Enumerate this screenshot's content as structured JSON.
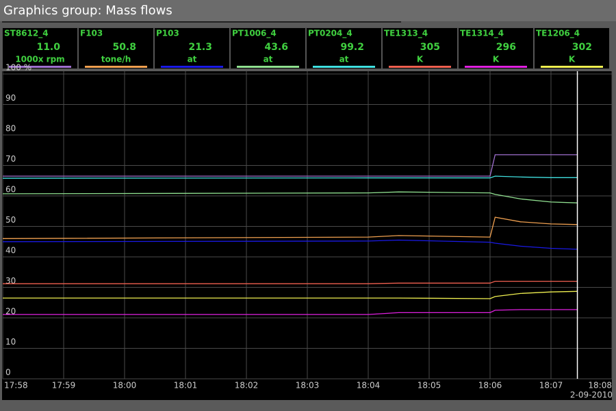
{
  "window_title": "Graphics group: Mass flows",
  "chart_data": {
    "type": "line",
    "x": [
      "17:58:00",
      "18:04:00",
      "18:04:30",
      "18:06:00",
      "18:06:05",
      "18:06:30",
      "18:07:00",
      "18:07:26"
    ],
    "xlim": [
      "17:58",
      "18:08"
    ],
    "xticks": [
      "17:58",
      "17:59",
      "18:00",
      "18:01",
      "18:02",
      "18:03",
      "18:04",
      "18:05",
      "18:06",
      "18:07",
      "18:08"
    ],
    "date": "2-09-2010",
    "ylim": [
      0,
      100
    ],
    "yticks": [
      0,
      10,
      20,
      30,
      40,
      50,
      60,
      70,
      80,
      90,
      {
        "value": 100,
        "label": "100 %"
      }
    ],
    "grid": true,
    "series": [
      {
        "name": "ST8612_4",
        "reading": "11.0",
        "unit": "1000x rpm",
        "color": "#a070d0",
        "values": [
          66.5,
          66.5,
          66.5,
          66.5,
          73.5,
          73.5,
          73.5,
          73.5
        ]
      },
      {
        "name": "F103",
        "reading": "50.8",
        "unit": "tone/h",
        "color": "#f0a050",
        "values": [
          46,
          46.5,
          47,
          46.5,
          53,
          51.5,
          50.8,
          50.6
        ]
      },
      {
        "name": "P103",
        "reading": "21.3",
        "unit": "at",
        "color": "#1a1ae6",
        "values": [
          45,
          45.2,
          45.5,
          44.8,
          44.5,
          43.5,
          42.8,
          42.5
        ]
      },
      {
        "name": "PT1006_4",
        "reading": "43.6",
        "unit": "at",
        "color": "#90e090",
        "values": [
          60.7,
          61,
          61.3,
          61,
          60.5,
          59,
          58,
          57.7
        ]
      },
      {
        "name": "PT0204_4",
        "reading": "99.2",
        "unit": "at",
        "color": "#40e0e0",
        "values": [
          65.8,
          65.9,
          65.9,
          65.9,
          66.5,
          66.2,
          66,
          66
        ]
      },
      {
        "name": "TE1313_4",
        "reading": "305",
        "unit": "K",
        "color": "#f06050",
        "values": [
          31.2,
          31.2,
          31.4,
          31.4,
          32,
          32,
          32,
          32
        ]
      },
      {
        "name": "TE1314_4",
        "reading": "296",
        "unit": "K",
        "color": "#e020e0",
        "values": [
          21.1,
          21.1,
          21.7,
          21.7,
          22.5,
          22.7,
          22.7,
          22.7
        ]
      },
      {
        "name": "TE1206_4",
        "reading": "302",
        "unit": "K",
        "color": "#f0f050",
        "values": [
          26.5,
          26.5,
          26.5,
          26.3,
          27,
          28,
          28.5,
          28.7
        ]
      }
    ]
  }
}
